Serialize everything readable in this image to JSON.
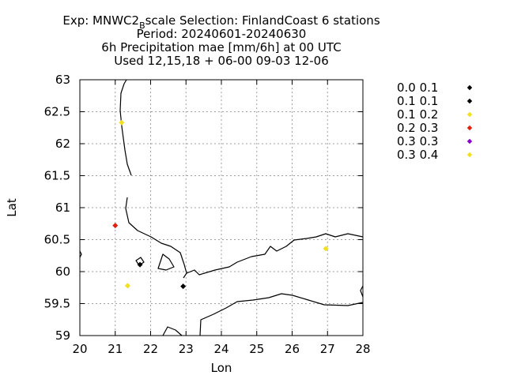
{
  "chart_data": {
    "type": "scatter",
    "title_lines": [
      {
        "pre": "Exp: MNWC2",
        "sub": "B",
        "post": "scale   Selection: FinlandCoast      6 stations"
      },
      {
        "pre": "Period: 20240601-20240630"
      },
      {
        "pre": "6h Precipitation mae [mm/6h] at  00 UTC"
      },
      {
        "pre": "Used 12,15,18 + 06-00 09-03 12-06"
      }
    ],
    "xlabel": "Lon",
    "ylabel": "Lat",
    "xlim": [
      20,
      28
    ],
    "ylim": [
      59,
      63
    ],
    "xticks": [
      20,
      21,
      22,
      23,
      24,
      25,
      26,
      27,
      28
    ],
    "yticks": [
      59,
      59.5,
      60,
      60.5,
      61,
      61.5,
      62,
      62.5,
      63
    ],
    "xtick_labels": [
      "20",
      "21",
      "22",
      "23",
      "24",
      "25",
      "26",
      "27",
      "28"
    ],
    "ytick_labels": [
      "59",
      "59.5",
      "60",
      "60.5",
      "61",
      "61.5",
      "62",
      "62.5",
      "63"
    ],
    "grid": true,
    "legend_position": "right",
    "series": [
      {
        "name": "0.0 0.1",
        "color": "#000000",
        "points": [
          [
            22.92,
            59.77
          ]
        ]
      },
      {
        "name": "0.1 0.1",
        "color": "#000000",
        "points": [
          [
            21.7,
            60.11
          ]
        ]
      },
      {
        "name": "0.1 0.2",
        "color": "#f0e020",
        "points": [
          [
            21.35,
            59.78
          ],
          [
            26.95,
            60.36
          ]
        ]
      },
      {
        "name": "0.2 0.3",
        "color": "#e02010",
        "points": [
          [
            21.0,
            60.72
          ]
        ]
      },
      {
        "name": "0.3 0.3",
        "color": "#8a00c8",
        "points": []
      },
      {
        "name": "0.3 0.4",
        "color": "#f0e020",
        "points": [
          [
            21.18,
            62.33
          ]
        ]
      }
    ]
  }
}
